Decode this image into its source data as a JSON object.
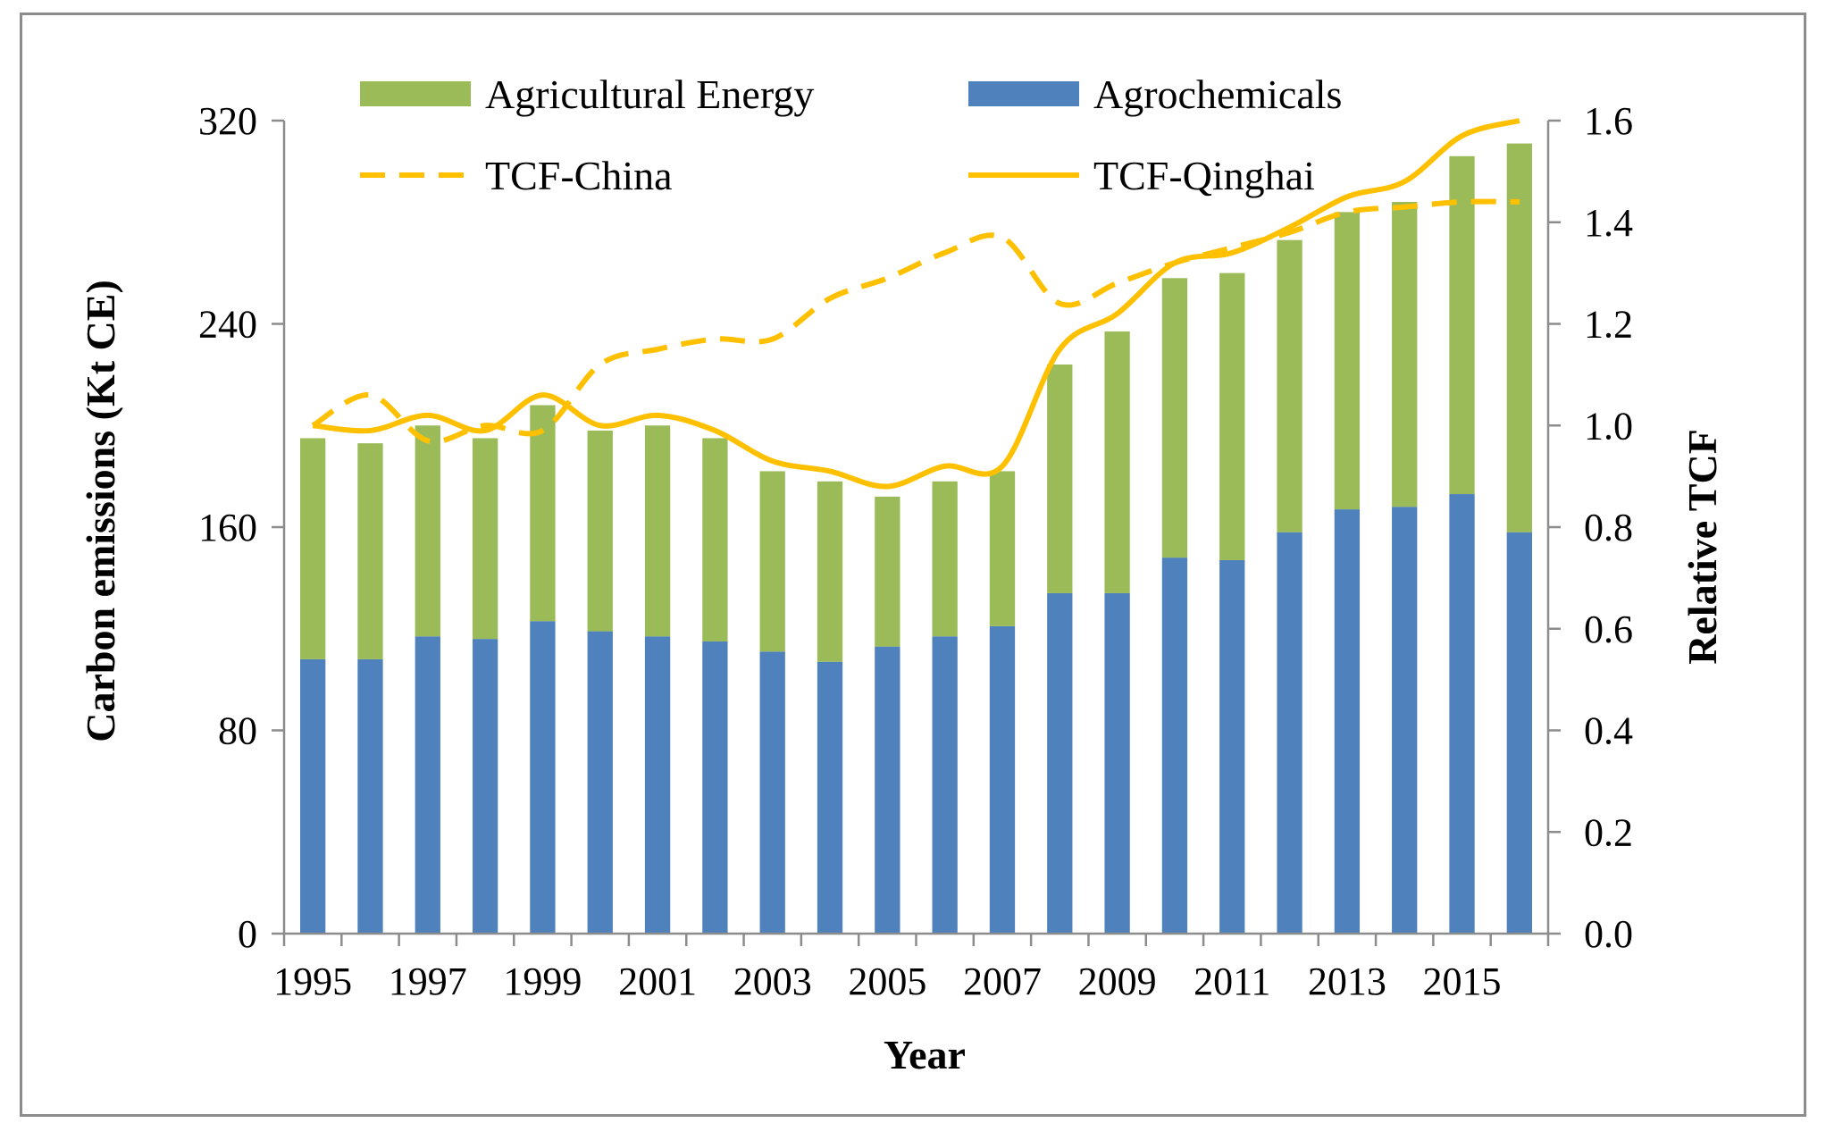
{
  "chart_data": {
    "type": "bar",
    "stacked": true,
    "categories": [
      "1995",
      "1996",
      "1997",
      "1998",
      "1999",
      "2000",
      "2001",
      "2002",
      "2003",
      "2004",
      "2005",
      "2006",
      "2007",
      "2008",
      "2009",
      "2010",
      "2011",
      "2012",
      "2013",
      "2014",
      "2015",
      "2016"
    ],
    "x_tick_labels": [
      "1995",
      "1997",
      "1999",
      "2001",
      "2003",
      "2005",
      "2007",
      "2009",
      "2011",
      "2013",
      "2015"
    ],
    "series": [
      {
        "name": "Agrochemicals",
        "type": "bar",
        "axis": "left",
        "color": "#4f81bd",
        "values": [
          108,
          108,
          117,
          116,
          123,
          119,
          117,
          115,
          111,
          107,
          113,
          117,
          121,
          134,
          134,
          148,
          147,
          158,
          167,
          168,
          173,
          158
        ]
      },
      {
        "name": "Agricultural Energy",
        "type": "bar",
        "axis": "left",
        "color": "#9bbb59",
        "values": [
          87,
          85,
          83,
          79,
          85,
          79,
          83,
          80,
          71,
          71,
          59,
          61,
          61,
          90,
          103,
          110,
          113,
          115,
          117,
          120,
          133,
          153
        ]
      },
      {
        "name": "TCF-China",
        "type": "line",
        "dash": true,
        "axis": "right",
        "color": "#ffc000",
        "values": [
          1.0,
          1.06,
          0.97,
          1.0,
          0.99,
          1.12,
          1.15,
          1.17,
          1.17,
          1.25,
          1.29,
          1.34,
          1.37,
          1.24,
          1.28,
          1.32,
          1.35,
          1.38,
          1.42,
          1.43,
          1.44,
          1.44
        ]
      },
      {
        "name": "TCF-Qinghai",
        "type": "line",
        "dash": false,
        "axis": "right",
        "color": "#ffc000",
        "values": [
          1.0,
          0.99,
          1.02,
          0.99,
          1.06,
          1.0,
          1.02,
          0.99,
          0.93,
          0.91,
          0.88,
          0.92,
          0.92,
          1.15,
          1.22,
          1.32,
          1.34,
          1.39,
          1.45,
          1.48,
          1.57,
          1.6
        ]
      }
    ],
    "xlabel": "Year",
    "ylabel": "Carbon emissions  (Kt CE)",
    "y2label": "Relative TCF",
    "ylim": [
      0,
      320
    ],
    "y_ticks": [
      0,
      80,
      160,
      240,
      320
    ],
    "y2lim": [
      0.0,
      1.6
    ],
    "y2_ticks": [
      "0.0",
      "0.2",
      "0.4",
      "0.6",
      "0.8",
      "1.0",
      "1.2",
      "1.4",
      "1.6"
    ],
    "grid": false,
    "legend_placement": "top"
  }
}
